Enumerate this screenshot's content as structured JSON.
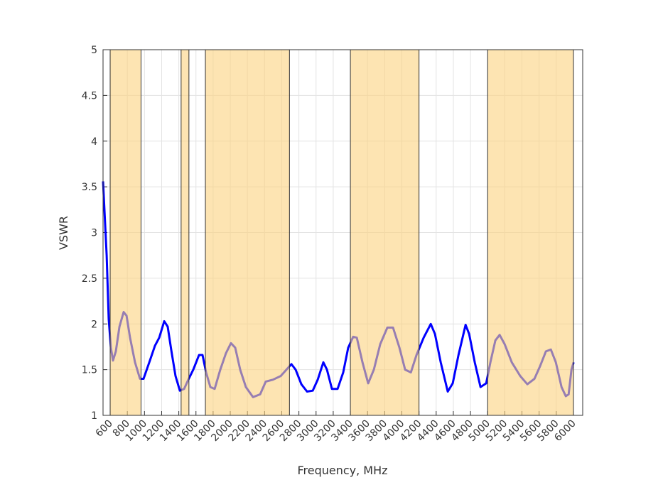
{
  "chart_data": {
    "type": "line",
    "xlabel": "Frequency, MHz",
    "ylabel": "VSWR",
    "xlim": [
      517,
      6108
    ],
    "ylim": [
      1,
      5
    ],
    "xticks": [
      600,
      800,
      1000,
      1200,
      1400,
      1600,
      1800,
      2000,
      2200,
      2400,
      2600,
      2800,
      3000,
      3200,
      3400,
      3600,
      3800,
      4000,
      4200,
      4400,
      4600,
      4800,
      5000,
      5200,
      5400,
      5600,
      5800,
      6000
    ],
    "yticks": [
      1,
      1.5,
      2,
      2.5,
      3,
      3.5,
      4,
      4.5,
      5
    ],
    "grid": true,
    "bands": [
      [
        600,
        960
      ],
      [
        1427,
        1518
      ],
      [
        1710,
        2690
      ],
      [
        3400,
        4200
      ],
      [
        5000,
        6000
      ]
    ],
    "band_color": "#fbd27e",
    "series": [
      {
        "color": "#0000ff",
        "x": [
          517,
          559,
          583,
          608,
          633,
          666,
          708,
          757,
          791,
          832,
          890,
          948,
          989,
          1056,
          1122,
          1172,
          1230,
          1271,
          1313,
          1362,
          1412,
          1462,
          1511,
          1569,
          1636,
          1677,
          1718,
          1768,
          1818,
          1884,
          1950,
          2008,
          2058,
          2116,
          2182,
          2265,
          2348,
          2414,
          2497,
          2588,
          2655,
          2713,
          2762,
          2829,
          2895,
          2961,
          3019,
          3085,
          3127,
          3185,
          3251,
          3317,
          3375,
          3433,
          3475,
          3541,
          3607,
          3674,
          3748,
          3831,
          3897,
          3972,
          4038,
          4105,
          4171,
          4254,
          4337,
          4386,
          4453,
          4535,
          4593,
          4660,
          4743,
          4784,
          4850,
          4917,
          4983,
          5032,
          5090,
          5140,
          5198,
          5281,
          5380,
          5463,
          5546,
          5612,
          5679,
          5737,
          5795,
          5861,
          5911,
          5944,
          5977,
          6002
        ],
        "values": [
          3.56,
          2.75,
          2.05,
          1.74,
          1.6,
          1.7,
          1.97,
          2.13,
          2.09,
          1.85,
          1.58,
          1.4,
          1.4,
          1.58,
          1.76,
          1.85,
          2.03,
          1.97,
          1.71,
          1.43,
          1.27,
          1.29,
          1.39,
          1.5,
          1.66,
          1.66,
          1.47,
          1.31,
          1.29,
          1.5,
          1.68,
          1.79,
          1.74,
          1.5,
          1.31,
          1.2,
          1.23,
          1.37,
          1.39,
          1.43,
          1.5,
          1.56,
          1.5,
          1.34,
          1.26,
          1.27,
          1.39,
          1.58,
          1.5,
          1.29,
          1.29,
          1.47,
          1.74,
          1.86,
          1.85,
          1.58,
          1.35,
          1.5,
          1.78,
          1.96,
          1.96,
          1.74,
          1.5,
          1.47,
          1.66,
          1.85,
          2.0,
          1.89,
          1.58,
          1.26,
          1.35,
          1.66,
          1.99,
          1.89,
          1.58,
          1.31,
          1.35,
          1.58,
          1.82,
          1.88,
          1.78,
          1.58,
          1.43,
          1.34,
          1.4,
          1.54,
          1.7,
          1.72,
          1.58,
          1.31,
          1.21,
          1.23,
          1.5,
          1.58
        ]
      }
    ]
  }
}
